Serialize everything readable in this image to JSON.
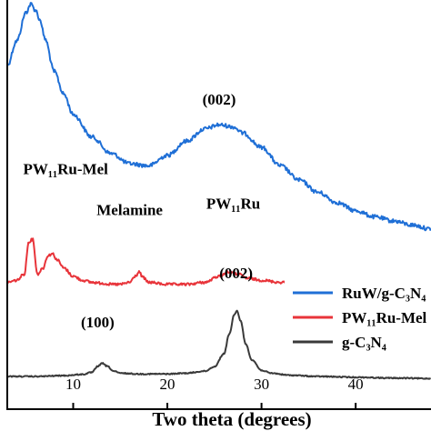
{
  "chart_data": {
    "type": "line",
    "title": "",
    "xlabel": "Two theta (degrees)",
    "ylabel": "",
    "xlim": [
      3,
      48
    ],
    "x_ticks": [
      10,
      20,
      30,
      40
    ],
    "y_ticks_visible": false,
    "grid": false,
    "legend_position": "bottom-right",
    "series": [
      {
        "name": "RuW/g-C3N4",
        "legend_label": "RuW/g-C₃N₄",
        "color": "#1f6fd6",
        "noise": 2.2,
        "x": [
          3,
          4,
          5,
          5.5,
          6,
          6.5,
          7,
          8,
          9,
          10,
          12,
          14,
          16,
          18,
          20,
          22,
          24,
          25.5,
          27,
          28,
          30,
          32,
          34,
          36,
          38,
          40,
          42,
          44,
          46,
          48
        ],
        "y": [
          0.84,
          0.9,
          0.97,
          0.99,
          0.975,
          0.95,
          0.905,
          0.825,
          0.77,
          0.72,
          0.665,
          0.625,
          0.6,
          0.595,
          0.62,
          0.655,
          0.685,
          0.695,
          0.69,
          0.675,
          0.64,
          0.595,
          0.56,
          0.53,
          0.505,
          0.485,
          0.47,
          0.46,
          0.45,
          0.44
        ]
      },
      {
        "name": "PW11Ru-Mel",
        "legend_label": "PW₁₁Ru-Mel",
        "color": "#e8343a",
        "noise": 1.4,
        "x": [
          3,
          4,
          4.8,
          5.3,
          5.7,
          6.2,
          6.8,
          7.3,
          7.8,
          8.3,
          9,
          10,
          11,
          12,
          13,
          14,
          15,
          16,
          16.6,
          17,
          17.4,
          18,
          20,
          22,
          24,
          25.5,
          26.5,
          27.5,
          28.5,
          30,
          32,
          34,
          36,
          40,
          44,
          48
        ],
        "y": [
          0.31,
          0.315,
          0.33,
          0.41,
          0.415,
          0.33,
          0.345,
          0.375,
          0.38,
          0.365,
          0.345,
          0.325,
          0.315,
          0.31,
          0.308,
          0.305,
          0.305,
          0.31,
          0.325,
          0.335,
          0.322,
          0.31,
          0.305,
          0.305,
          0.31,
          0.325,
          0.335,
          0.33,
          0.32,
          0.315,
          0.31,
          0.318,
          0.305,
          0.3,
          0.295,
          0.29
        ]
      },
      {
        "name": "g-C3N4",
        "legend_label": "g-C₃N₄",
        "color": "#3a3a3a",
        "noise": 0.6,
        "x": [
          3,
          6,
          9,
          11,
          12,
          12.6,
          13.1,
          13.6,
          14.3,
          15,
          17,
          20,
          22,
          24,
          25,
          26,
          26.6,
          27.1,
          27.4,
          27.8,
          28.3,
          29,
          30,
          31,
          33,
          36,
          40,
          44,
          48
        ],
        "y": [
          0.08,
          0.08,
          0.082,
          0.085,
          0.09,
          0.105,
          0.112,
          0.105,
          0.093,
          0.088,
          0.086,
          0.086,
          0.088,
          0.093,
          0.104,
          0.135,
          0.185,
          0.23,
          0.24,
          0.215,
          0.16,
          0.12,
          0.095,
          0.088,
          0.083,
          0.08,
          0.078,
          0.076,
          0.075
        ]
      }
    ],
    "annotations": [
      {
        "text": "(002)",
        "x": 25.5,
        "y": 0.745
      },
      {
        "text": "PW₁₁Ru-Mel",
        "x": 9.2,
        "y": 0.575
      },
      {
        "text": "Melamine",
        "x": 16.0,
        "y": 0.475
      },
      {
        "text": "PW₁₁Ru",
        "x": 27.0,
        "y": 0.49
      },
      {
        "text": "(100)",
        "x": 12.6,
        "y": 0.2
      },
      {
        "text": "(002)",
        "x": 27.3,
        "y": 0.32
      }
    ],
    "xtick_labels": [
      "10",
      "20",
      "30",
      "40"
    ]
  }
}
